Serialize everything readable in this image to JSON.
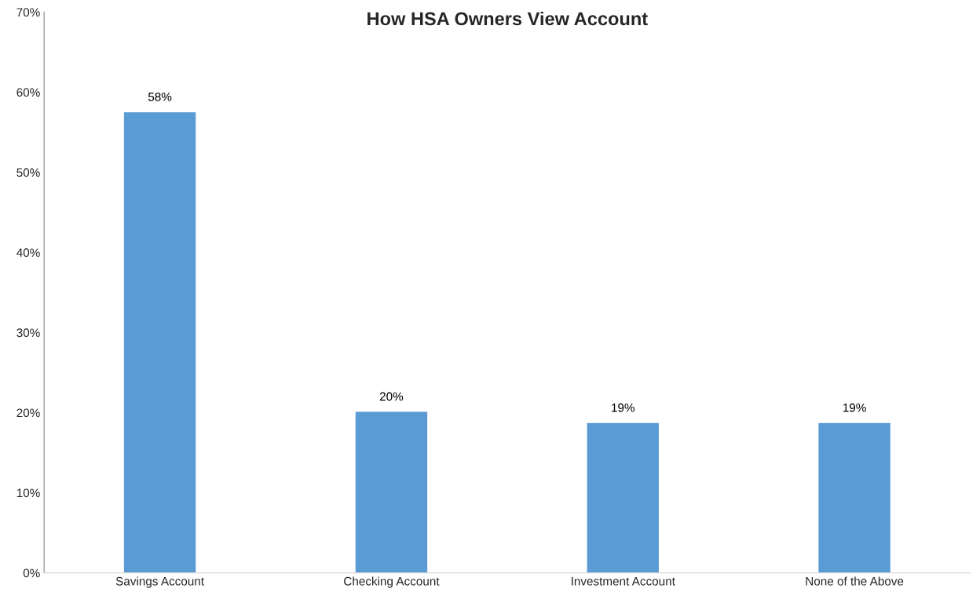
{
  "chart_data": {
    "type": "bar",
    "title": "How HSA Owners View Account",
    "categories": [
      "Savings Account",
      "Checking Account",
      "Investment Account",
      "None of the Above"
    ],
    "values": [
      57.5,
      20.1,
      18.7,
      18.7
    ],
    "value_labels": [
      "58%",
      "20%",
      "19%",
      "19%"
    ],
    "color": "#5b9bd5",
    "ylim": [
      0,
      70
    ],
    "yticks": [
      {
        "value": 0,
        "label": "0%"
      },
      {
        "value": 10,
        "label": "10%"
      },
      {
        "value": 20,
        "label": "20%"
      },
      {
        "value": 30,
        "label": "30%"
      },
      {
        "value": 40,
        "label": "40%"
      },
      {
        "value": 50,
        "label": "50%"
      },
      {
        "value": 60,
        "label": "60%"
      },
      {
        "value": 70,
        "label": "70%"
      }
    ],
    "grid": false,
    "legend": false
  }
}
